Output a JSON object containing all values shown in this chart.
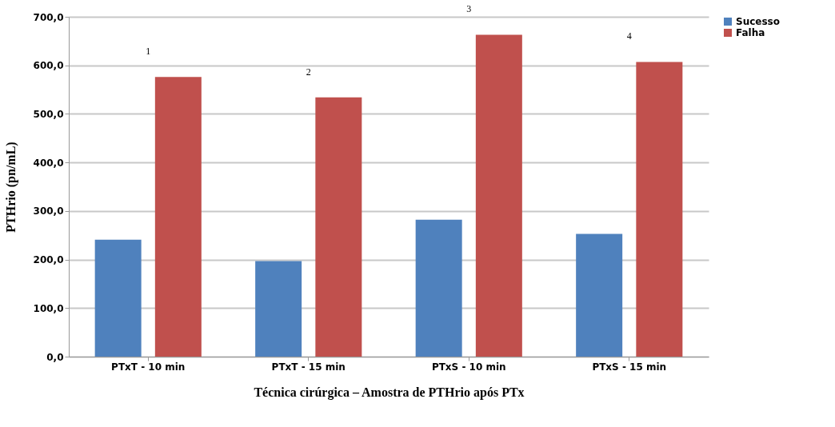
{
  "chart_data": {
    "type": "bar",
    "categories": [
      "PTxT -  10 min",
      "PTxT -  15 min",
      "PTxS -  10 min",
      "PTxS -  15 min"
    ],
    "series": [
      {
        "name": "Sucesso",
        "color": "#4f81bd",
        "values": [
          241,
          197,
          282,
          253
        ]
      },
      {
        "name": "Falha",
        "color": "#c0504d",
        "values": [
          576,
          534,
          663,
          607
        ]
      }
    ],
    "xlabel": "Técnica cirúrgica – Amostra de PTHrio após PTx",
    "ylabel": "PTHrio (pn/mL)",
    "ylim": [
      0,
      700
    ],
    "yticks": [
      {
        "value": 0,
        "label": "0,0"
      },
      {
        "value": 100,
        "label": "100,0"
      },
      {
        "value": 200,
        "label": "200,0"
      },
      {
        "value": 300,
        "label": "300,0"
      },
      {
        "value": 400,
        "label": "400,0"
      },
      {
        "value": 500,
        "label": "500,0"
      },
      {
        "value": 600,
        "label": "600,0"
      },
      {
        "value": 700,
        "label": "700,0"
      }
    ],
    "annotations": [
      "1",
      "2",
      "3",
      "4"
    ],
    "grid": "y",
    "legend": "right"
  }
}
